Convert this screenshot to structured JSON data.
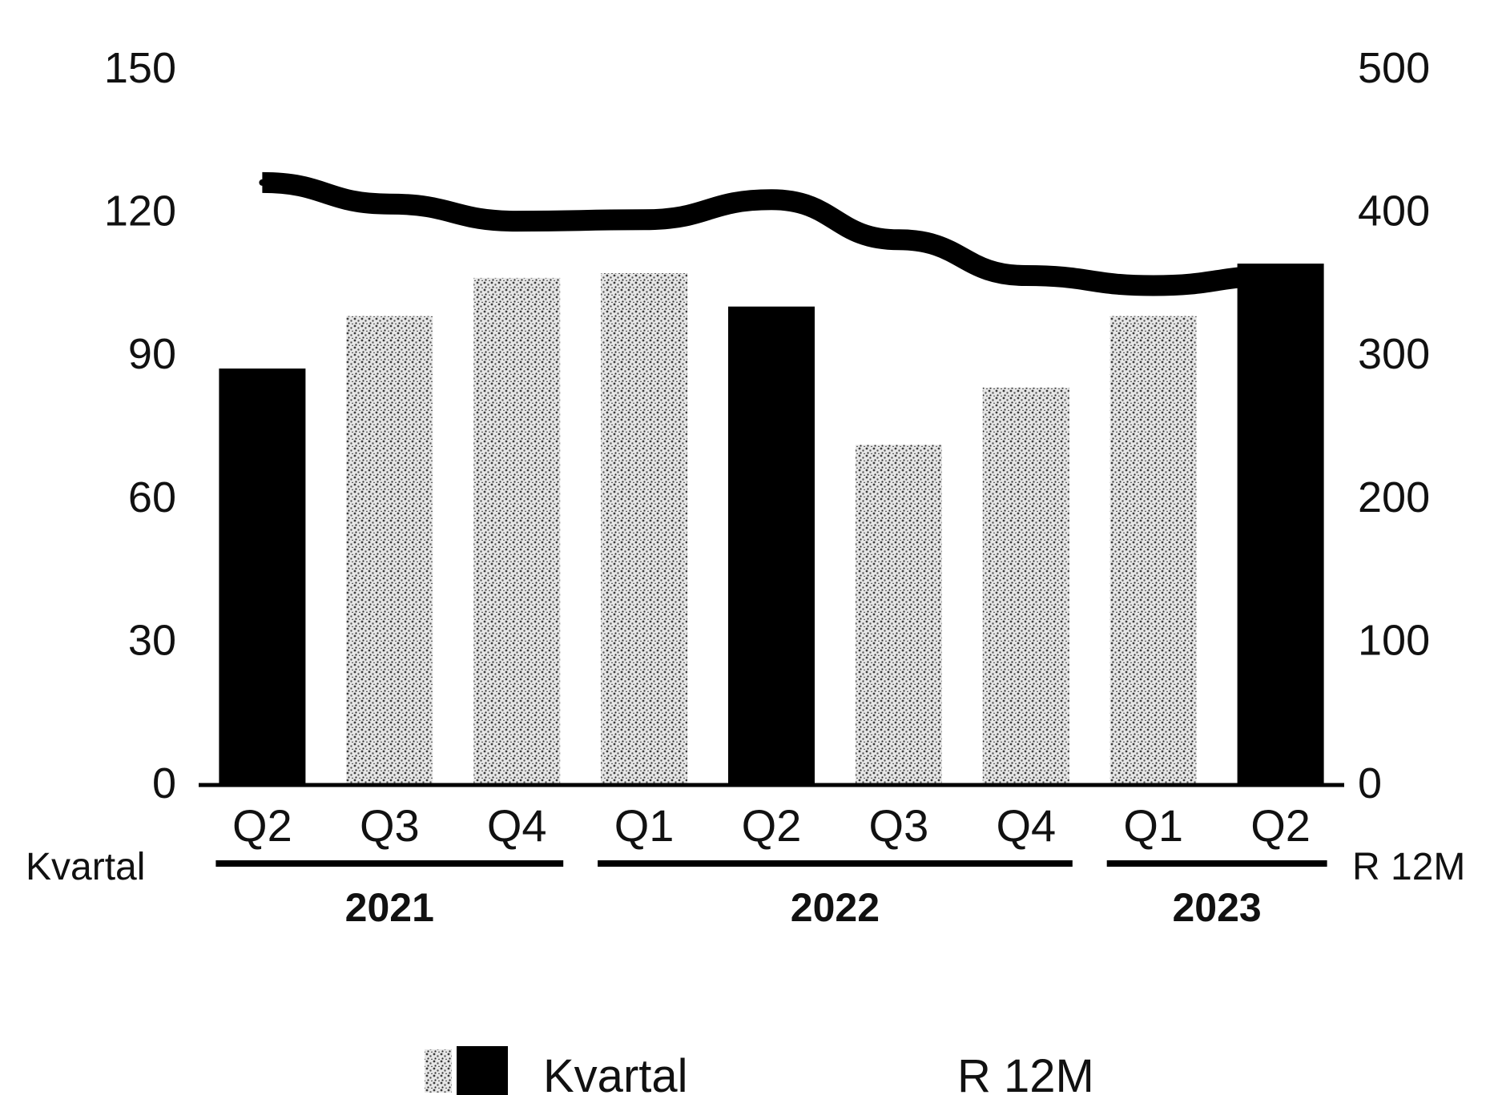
{
  "colors": {
    "bar_solid": "#000000",
    "bar_stipple": "#9a9a9a",
    "line": "#000000",
    "axis": "#000000",
    "background": "#ffffff"
  },
  "chart_data": {
    "type": "bar",
    "title": "",
    "categories": [
      "Q2",
      "Q3",
      "Q4",
      "Q1",
      "Q2",
      "Q3",
      "Q4",
      "Q1",
      "Q2"
    ],
    "x_axis_label": "Kvartal",
    "secondary_axis_label": "R 12M",
    "year_groups": [
      {
        "label": "2021",
        "start": 0,
        "end": 2
      },
      {
        "label": "2022",
        "start": 3,
        "end": 6
      },
      {
        "label": "2023",
        "start": 7,
        "end": 8
      }
    ],
    "series": [
      {
        "name": "Kvartal",
        "type": "bar",
        "axis": "left",
        "values": [
          87,
          98,
          106,
          107,
          100,
          71,
          83,
          98,
          109
        ],
        "solid": [
          true,
          false,
          false,
          false,
          true,
          false,
          false,
          false,
          true
        ]
      },
      {
        "name": "R 12M",
        "type": "line",
        "axis": "right",
        "values": [
          420,
          405,
          393,
          394,
          408,
          380,
          355,
          348,
          355
        ]
      }
    ],
    "y_left": {
      "min": 0,
      "max": 150,
      "ticks": [
        0,
        30,
        60,
        90,
        120,
        150
      ]
    },
    "y_right": {
      "min": 0,
      "max": 500,
      "ticks": [
        0,
        100,
        200,
        300,
        400,
        500
      ]
    },
    "grid": false,
    "legend": {
      "position": "bottom",
      "items": [
        {
          "label": "Kvartal",
          "symbol": "bar-pair"
        },
        {
          "label": "R 12M",
          "symbol": "line"
        }
      ]
    }
  }
}
